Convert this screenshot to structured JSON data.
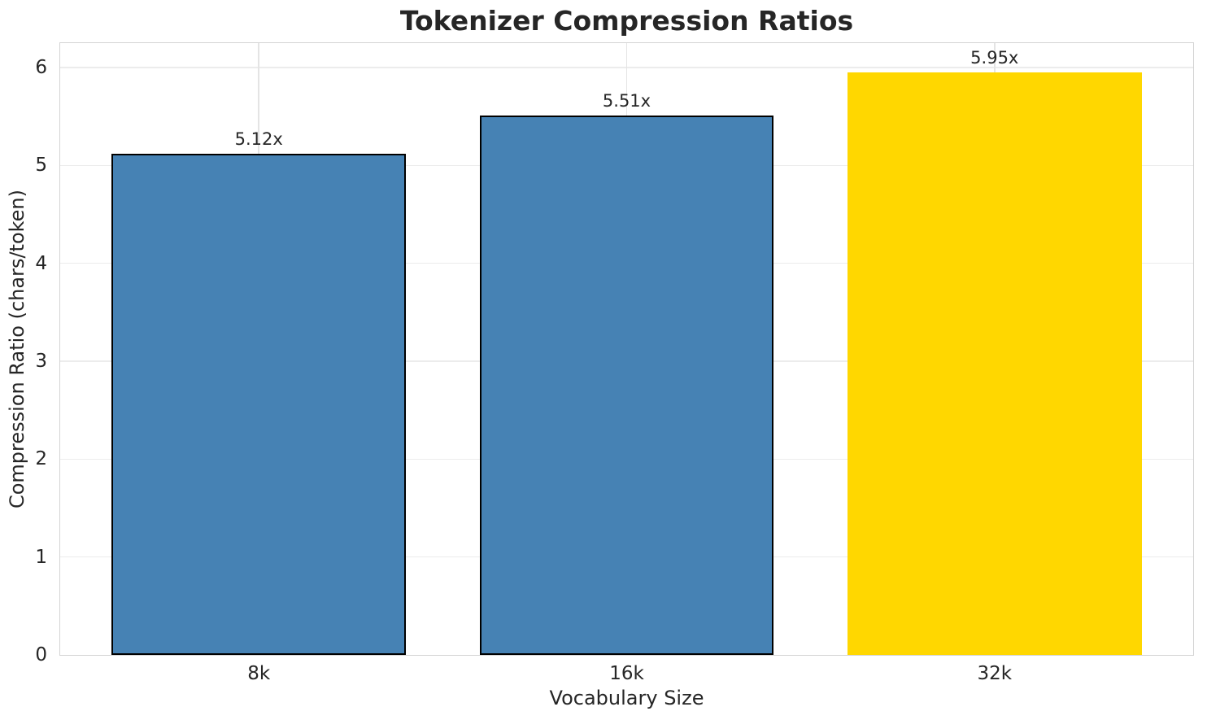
{
  "chart_data": {
    "type": "bar",
    "title": "Tokenizer Compression Ratios",
    "xlabel": "Vocabulary Size",
    "ylabel": "Compression Ratio (chars/token)",
    "categories": [
      "8k",
      "16k",
      "32k"
    ],
    "values": [
      5.12,
      5.51,
      5.95
    ],
    "bar_labels": [
      "5.12x",
      "5.51x",
      "5.95x"
    ],
    "bar_colors": [
      "#4682B4",
      "#4682B4",
      "#FFD700"
    ],
    "bar_edge_colors": [
      "#000000",
      "#000000",
      "none"
    ],
    "base_color": "#4682B4",
    "highlight_color": "#FFD700",
    "ylim": [
      0,
      6.25
    ],
    "yticks": [
      0,
      1,
      2,
      3,
      4,
      5,
      6
    ],
    "grid": true,
    "legend_position": "none",
    "text_color": "#262626",
    "grid_color": "#ececec",
    "spine_color": "#d4d4d4"
  }
}
